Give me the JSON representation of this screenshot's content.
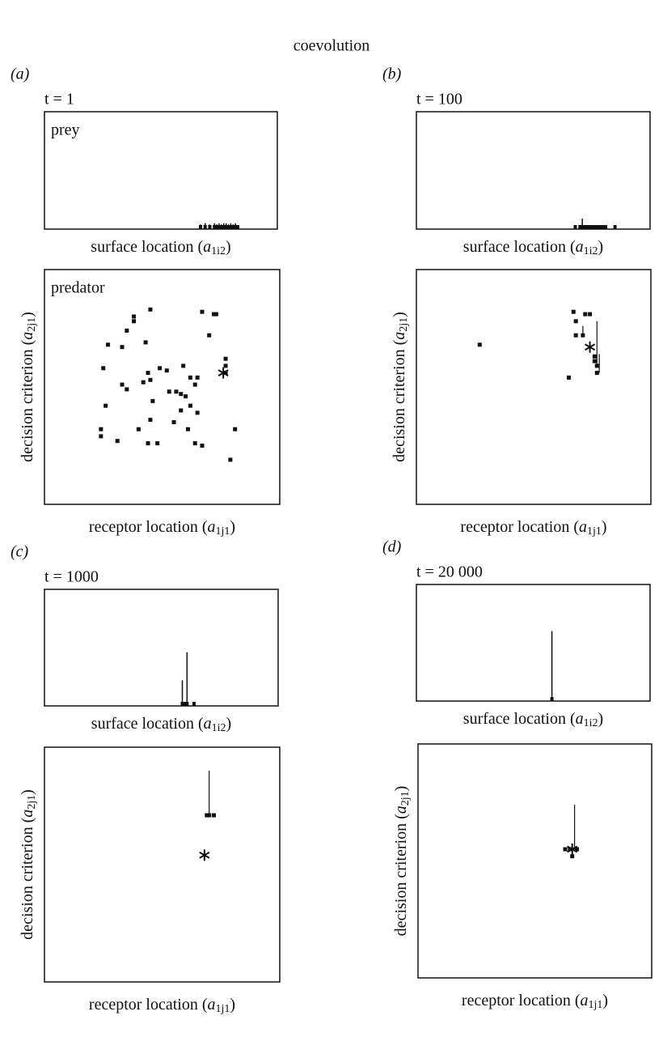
{
  "title": "coevolution",
  "chart_data": [
    {
      "type": "spike",
      "panel_label": "(a)",
      "time": "t = 1",
      "title": "prey",
      "xlabel": {
        "text": "surface location (",
        "var": "a",
        "sub": "1i2",
        "end": ")"
      },
      "xlim": [
        0,
        1
      ],
      "ylim": [
        0,
        1
      ],
      "x": [
        0.67,
        0.69,
        0.71,
        0.73,
        0.74,
        0.75,
        0.76,
        0.77,
        0.78,
        0.79,
        0.8,
        0.81,
        0.82,
        0.83
      ],
      "values": [
        0.04,
        0.05,
        0.04,
        0.05,
        0.04,
        0.05,
        0.04,
        0.05,
        0.05,
        0.04,
        0.05,
        0.04,
        0.05,
        0.03
      ]
    },
    {
      "type": "scatter",
      "title": "predator",
      "xlabel": {
        "text": "receptor location (",
        "var": "a",
        "sub": "1j1",
        "end": ")"
      },
      "ylabel": {
        "text": "decision criterion (",
        "var": "a",
        "sub": "2j1",
        "end": ")"
      },
      "xlim": [
        0,
        1
      ],
      "ylim": [
        0,
        1
      ],
      "x": [
        0.45,
        0.38,
        0.38,
        0.35,
        0.67,
        0.72,
        0.73,
        0.7,
        0.27,
        0.33,
        0.43,
        0.77,
        0.25,
        0.44,
        0.49,
        0.52,
        0.59,
        0.33,
        0.35,
        0.42,
        0.45,
        0.62,
        0.65,
        0.64,
        0.53,
        0.56,
        0.58,
        0.6,
        0.26,
        0.46,
        0.58,
        0.62,
        0.65,
        0.55,
        0.4,
        0.45,
        0.24,
        0.24,
        0.31,
        0.61,
        0.81,
        0.44,
        0.48,
        0.64,
        0.67,
        0.79,
        0.77,
        0.77
      ],
      "y": [
        0.83,
        0.8,
        0.78,
        0.74,
        0.82,
        0.81,
        0.81,
        0.72,
        0.68,
        0.67,
        0.69,
        0.62,
        0.58,
        0.56,
        0.58,
        0.57,
        0.59,
        0.51,
        0.49,
        0.52,
        0.53,
        0.54,
        0.54,
        0.51,
        0.48,
        0.48,
        0.47,
        0.46,
        0.42,
        0.44,
        0.4,
        0.42,
        0.39,
        0.35,
        0.32,
        0.36,
        0.32,
        0.29,
        0.27,
        0.32,
        0.32,
        0.26,
        0.26,
        0.26,
        0.25,
        0.19,
        0.59,
        0.56
      ],
      "star": {
        "x": 0.76,
        "y": 0.56
      },
      "stems": {
        "x": [],
        "y0": [],
        "y1": []
      }
    },
    {
      "type": "spike",
      "panel_label": "(b)",
      "time": "t = 100",
      "xlabel": {
        "text": "surface location (",
        "var": "a",
        "sub": "1i2",
        "end": ")"
      },
      "xlim": [
        0,
        1
      ],
      "ylim": [
        0,
        1
      ],
      "x": [
        0.68,
        0.7,
        0.71,
        0.72,
        0.73,
        0.74,
        0.75,
        0.76,
        0.77,
        0.78,
        0.79,
        0.8,
        0.81,
        0.85
      ],
      "values": [
        0.02,
        0.03,
        0.09,
        0.02,
        0.02,
        0.02,
        0.02,
        0.02,
        0.02,
        0.02,
        0.02,
        0.02,
        0.02,
        0.02
      ]
    },
    {
      "type": "scatter",
      "xlabel": {
        "text": "receptor location (",
        "var": "a",
        "sub": "1j1",
        "end": ")"
      },
      "ylabel": {
        "text": "decision criterion (",
        "var": "a",
        "sub": "2j1",
        "end": ")"
      },
      "xlim": [
        0,
        1
      ],
      "ylim": [
        0,
        1
      ],
      "x": [
        0.27,
        0.67,
        0.68,
        0.72,
        0.74,
        0.68,
        0.71,
        0.65,
        0.76,
        0.77,
        0.77,
        0.76
      ],
      "y": [
        0.68,
        0.82,
        0.78,
        0.81,
        0.81,
        0.72,
        0.72,
        0.54,
        0.61,
        0.59,
        0.56,
        0.63
      ],
      "star": {
        "x": 0.74,
        "y": 0.67
      },
      "stems": {
        "x": [
          0.77,
          0.71,
          0.78
        ],
        "y0": [
          0.59,
          0.72,
          0.56
        ],
        "y1": [
          0.78,
          0.76,
          0.64
        ]
      }
    },
    {
      "type": "spike",
      "panel_label": "(c)",
      "time": "t = 1000",
      "xlabel": {
        "text": "surface location (",
        "var": "a",
        "sub": "1i2",
        "end": ")"
      },
      "xlim": [
        0,
        1
      ],
      "ylim": [
        0,
        1
      ],
      "x": [
        0.59,
        0.6,
        0.61,
        0.64
      ],
      "values": [
        0.22,
        0.03,
        0.46,
        0.03
      ]
    },
    {
      "type": "scatter",
      "xlabel": {
        "text": "receptor location (",
        "var": "a",
        "sub": "1j1",
        "end": ")"
      },
      "ylabel": {
        "text": "decision criterion (",
        "var": "a",
        "sub": "2j1",
        "end": ")"
      },
      "xlim": [
        0,
        1
      ],
      "ylim": [
        0,
        1
      ],
      "x": [
        0.69,
        0.7,
        0.72
      ],
      "y": [
        0.71,
        0.71,
        0.71
      ],
      "star": {
        "x": 0.68,
        "y": 0.54
      },
      "stems": {
        "x": [
          0.7
        ],
        "y0": [
          0.71
        ],
        "y1": [
          0.9
        ]
      }
    },
    {
      "type": "spike",
      "panel_label": "(d)",
      "time": "t = 20 000",
      "xlabel": {
        "text": "surface location (",
        "var": "a",
        "sub": "1i2",
        "end": ")"
      },
      "xlim": [
        0,
        1
      ],
      "ylim": [
        0,
        1
      ],
      "x": [
        0.58
      ],
      "values": [
        0.6
      ]
    },
    {
      "type": "scatter",
      "xlabel": {
        "text": "receptor location (",
        "var": "a",
        "sub": "1j1",
        "end": ")"
      },
      "ylabel": {
        "text": "decision criterion (",
        "var": "a",
        "sub": "2j1",
        "end": ")"
      },
      "xlim": [
        0,
        1
      ],
      "ylim": [
        0,
        1
      ],
      "x": [
        0.63,
        0.65,
        0.68,
        0.66
      ],
      "y": [
        0.55,
        0.55,
        0.55,
        0.52
      ],
      "star": {
        "x": 0.66,
        "y": 0.55
      },
      "stems": {
        "x": [
          0.67
        ],
        "y0": [
          0.55
        ],
        "y1": [
          0.74
        ]
      }
    }
  ]
}
